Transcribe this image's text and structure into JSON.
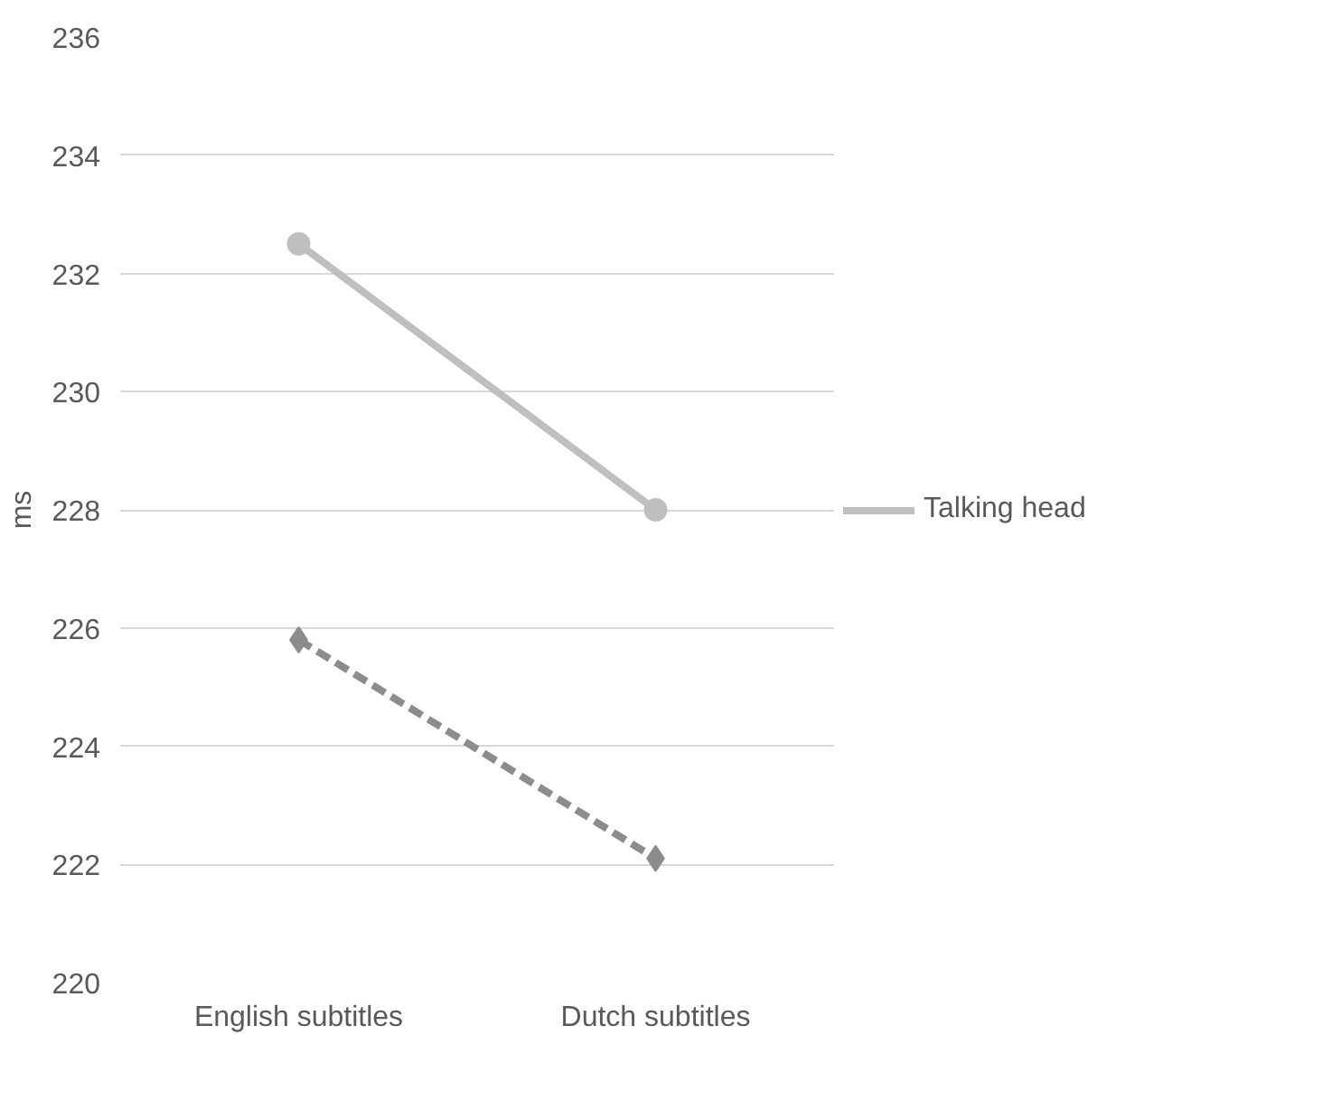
{
  "chart_data": {
    "type": "line",
    "ylabel": "ms",
    "categories": [
      "English subtitles",
      "Dutch subtitles"
    ],
    "series": [
      {
        "color": "#8c8c8c",
        "values": [
          225.8,
          222.1
        ],
        "marker": "diamond",
        "line_style": "dashed"
      },
      {
        "name": "Talking head",
        "color": "#bfbfbf",
        "values": [
          232.5,
          228.0
        ],
        "marker": "circle",
        "line_style": "solid"
      }
    ],
    "ylim": [
      220,
      236
    ],
    "yticks": [
      220,
      222,
      224,
      226,
      228,
      230,
      232,
      234,
      236
    ],
    "grid": "y",
    "legend": "right"
  }
}
